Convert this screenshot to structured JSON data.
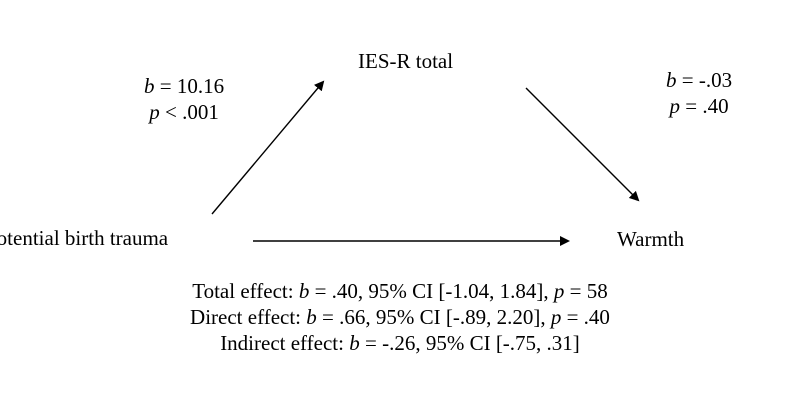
{
  "nodes": {
    "mediator": "IES-R total",
    "predictor": "Potential birth trauma",
    "outcome": "Warmth"
  },
  "paths": {
    "a": {
      "b_label": "b",
      "b_value": " = 10.16",
      "p_label": "p",
      "p_value": " < .001"
    },
    "b": {
      "b_label": "b",
      "b_value": " = -.03",
      "p_label": "p",
      "p_value": " = .40"
    }
  },
  "effects": {
    "total": {
      "prefix": "Total effect: ",
      "b_label": "b",
      "text": " = .40, 95% CI [-1.04, 1.84], ",
      "p_label": "p",
      "p_text": " = 58"
    },
    "direct": {
      "prefix": "Direct effect: ",
      "b_label": "b",
      "text": " = .66, 95% CI [-.89, 2.20], ",
      "p_label": "p",
      "p_text": " = .40"
    },
    "indirect": {
      "prefix": "Indirect effect: ",
      "b_label": "b",
      "text": " = -.26, 95% CI [-.75, .31]"
    }
  },
  "colors": {
    "text": "#000000",
    "arrow": "#000000",
    "background": "#ffffff"
  }
}
